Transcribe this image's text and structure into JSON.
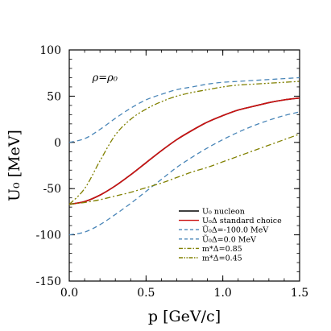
{
  "chart_data": {
    "type": "line",
    "xlabel": "p [GeV/c]",
    "ylabel": "U₀ [MeV]",
    "xlim": [
      0.0,
      1.5
    ],
    "ylim": [
      -150,
      100
    ],
    "xticks": [
      0.0,
      0.5,
      1.0,
      1.5
    ],
    "xtick_labels": [
      "0.0",
      "0.5",
      "1.0",
      "1.5"
    ],
    "yticks": [
      -150,
      -100,
      -50,
      0,
      50,
      100
    ],
    "ytick_labels": [
      "-150",
      "-100",
      "-50",
      "0",
      "50",
      "100"
    ],
    "annotation": "ρ=ρ₀",
    "grid": false,
    "legend_position": "bottom-right",
    "series": [
      {
        "name": "U₀ nucleon",
        "color": "#000000",
        "style": "solid",
        "x": [
          0.0,
          0.1,
          0.2,
          0.3,
          0.4,
          0.5,
          0.6,
          0.7,
          0.8,
          0.9,
          1.0,
          1.1,
          1.2,
          1.3,
          1.4,
          1.5
        ],
        "y": [
          -67,
          -64,
          -57,
          -47,
          -35,
          -22,
          -9,
          3,
          13,
          22,
          29,
          35,
          39,
          43,
          46,
          48
        ]
      },
      {
        "name": "U₀Δ standard choice",
        "color": "#cc1111",
        "style": "solid",
        "x": [
          0.0,
          0.1,
          0.2,
          0.3,
          0.4,
          0.5,
          0.6,
          0.7,
          0.8,
          0.9,
          1.0,
          1.1,
          1.2,
          1.3,
          1.4,
          1.5
        ],
        "y": [
          -67,
          -64,
          -57,
          -47,
          -35,
          -22,
          -9,
          3,
          13,
          22,
          29,
          35,
          39,
          43,
          46,
          48
        ]
      },
      {
        "name": "Ũ₀Δ=-100.0 MeV",
        "color": "#4a86b8",
        "style": "dashed",
        "x": [
          0.0,
          0.1,
          0.2,
          0.3,
          0.4,
          0.5,
          0.6,
          0.7,
          0.8,
          0.9,
          1.0,
          1.1,
          1.2,
          1.3,
          1.4,
          1.5
        ],
        "y": [
          -100,
          -97,
          -89,
          -78,
          -66,
          -53,
          -40,
          -27,
          -16,
          -6,
          3,
          11,
          18,
          24,
          29,
          33
        ]
      },
      {
        "name": "Ũ₀Δ=0.0 MeV",
        "color": "#4a86b8",
        "style": "dashed",
        "x": [
          0.0,
          0.1,
          0.2,
          0.3,
          0.4,
          0.5,
          0.6,
          0.7,
          0.8,
          0.9,
          1.0,
          1.1,
          1.2,
          1.3,
          1.4,
          1.5
        ],
        "y": [
          0,
          4,
          14,
          26,
          37,
          46,
          52,
          57,
          60,
          63,
          65,
          66,
          67,
          68,
          69,
          70
        ]
      },
      {
        "name": "m*Δ=0.85",
        "color": "#808000",
        "style": "dashdot",
        "x": [
          0.0,
          0.1,
          0.2,
          0.3,
          0.4,
          0.5,
          0.6,
          0.7,
          0.8,
          0.9,
          1.0,
          1.1,
          1.2,
          1.3,
          1.4,
          1.5
        ],
        "y": [
          -67,
          -65,
          -62,
          -58,
          -54,
          -49,
          -44,
          -38,
          -32,
          -27,
          -21,
          -15,
          -9,
          -3,
          3,
          9
        ]
      },
      {
        "name": "m*Δ=0.45",
        "color": "#808000",
        "style": "dashdotdot",
        "x": [
          0.0,
          0.1,
          0.2,
          0.3,
          0.4,
          0.5,
          0.6,
          0.7,
          0.8,
          0.9,
          1.0,
          1.1,
          1.2,
          1.3,
          1.4,
          1.5
        ],
        "y": [
          -67,
          -50,
          -20,
          8,
          25,
          36,
          44,
          50,
          54,
          57,
          60,
          62,
          63,
          64,
          65,
          66
        ]
      }
    ]
  }
}
